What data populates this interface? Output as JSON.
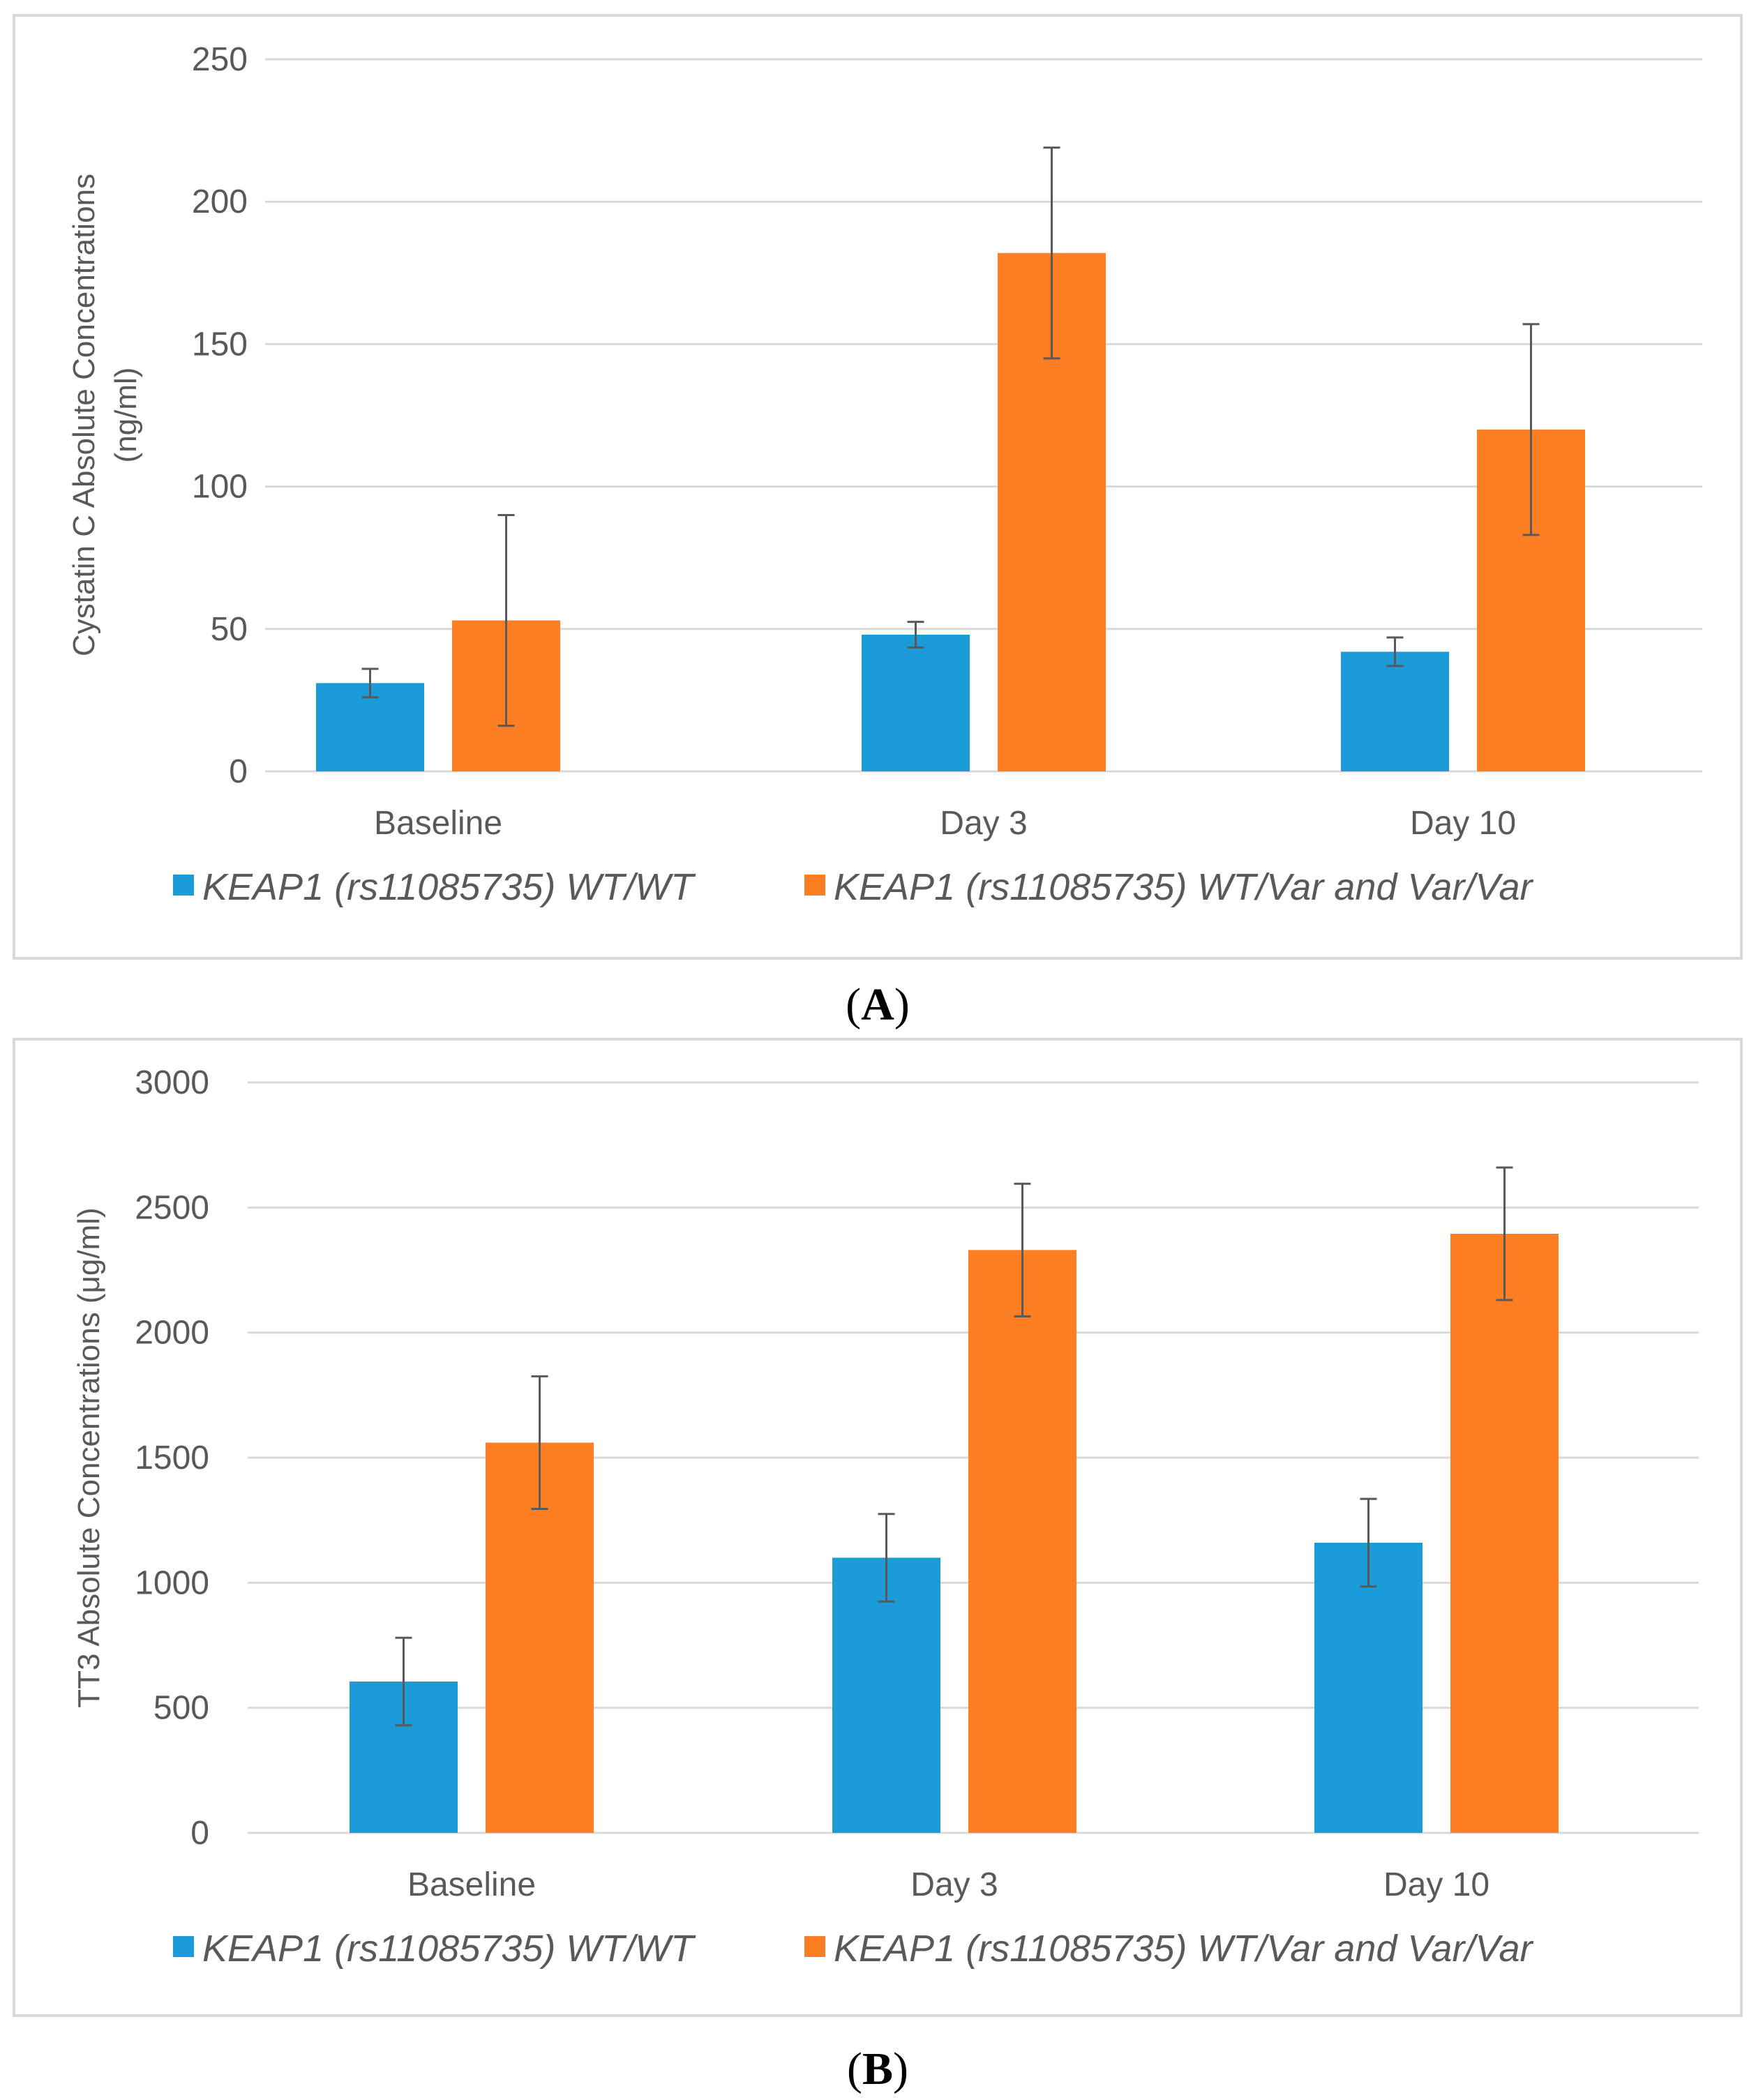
{
  "colors": {
    "wt": "#1b9bd8",
    "var": "#fe7f23",
    "grid": "#d9d9d9",
    "err": "#595959",
    "frame": "#d9d9d9"
  },
  "chart_data": [
    {
      "type": "bar",
      "panel_label": "A",
      "categories": [
        "Baseline",
        "Day 3",
        "Day 10"
      ],
      "series": [
        {
          "name": "KEAP1 (rs11085735) WT/WT",
          "values": [
            31,
            48,
            42
          ],
          "error": [
            5,
            4.5,
            5
          ]
        },
        {
          "name": "KEAP1 (rs11085735) WT/Var and Var/Var",
          "values": [
            53,
            182,
            120
          ],
          "error": [
            37,
            37,
            37
          ]
        }
      ],
      "ylabel_lines": [
        "Cystatin C Absolute Concentrations",
        "(ng/ml)"
      ],
      "ylim": [
        0,
        250
      ],
      "yticks": [
        0,
        50,
        100,
        150,
        200,
        250
      ],
      "grid": true,
      "legend": "bottom"
    },
    {
      "type": "bar",
      "panel_label": "B",
      "categories": [
        "Baseline",
        "Day 3",
        "Day 10"
      ],
      "series": [
        {
          "name": "KEAP1 (rs11085735) WT/WT",
          "values": [
            605,
            1100,
            1160
          ],
          "error": [
            175,
            175,
            175
          ]
        },
        {
          "name": "KEAP1 (rs11085735) WT/Var and Var/Var",
          "values": [
            1560,
            2330,
            2395
          ],
          "error": [
            265,
            265,
            265
          ]
        }
      ],
      "ylabel_lines": [
        "TT3 Absolute Concentrations (μg/ml)"
      ],
      "ylim": [
        0,
        3000
      ],
      "yticks": [
        0,
        500,
        1000,
        1500,
        2000,
        2500,
        3000
      ],
      "grid": true,
      "legend": "bottom"
    }
  ]
}
